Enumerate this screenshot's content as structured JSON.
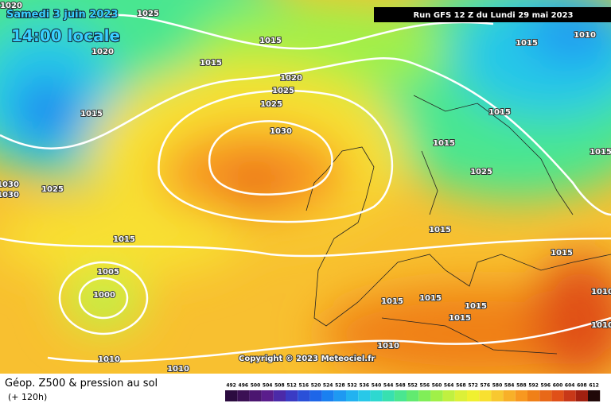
{
  "header": {
    "date": "Samedi 3 juin 2023",
    "time": "14:00 locale",
    "run": "Run GFS 12 Z du Lundi 29 mai 2023"
  },
  "pressure_labels": [
    "1020",
    "1025",
    "1015",
    "1015",
    "1020",
    "1015",
    "1010",
    "1020",
    "1025",
    "1025",
    "1030",
    "1015",
    "1015",
    "1015",
    "1015",
    "1025",
    "1030",
    "1030",
    "1025",
    "1015",
    "1015",
    "1015",
    "1005",
    "1000",
    "1015",
    "1015",
    "1015",
    "1015",
    "1010",
    "1010",
    "1010",
    "1010",
    "1010"
  ],
  "footer": {
    "title": "Géop. Z500 & pression au sol",
    "subtitle": "(+ 120h)",
    "copyright": "Copyright © 2023 Meteociel.fr"
  },
  "legend": {
    "values": [
      "492",
      "496",
      "500",
      "504",
      "508",
      "512",
      "516",
      "520",
      "524",
      "528",
      "532",
      "536",
      "540",
      "544",
      "548",
      "552",
      "556",
      "560",
      "564",
      "568",
      "572",
      "576",
      "580",
      "584",
      "588",
      "592",
      "596",
      "600",
      "604",
      "608",
      "612"
    ],
    "colors": [
      "#2b0b3f",
      "#3b1054",
      "#4b1670",
      "#5a1d8c",
      "#4b2aa8",
      "#3a3bc4",
      "#2a50d8",
      "#1e66e8",
      "#1a80f0",
      "#1e99f2",
      "#22b2f0",
      "#28c8e8",
      "#2ed8d0",
      "#38e0b0",
      "#4ae690",
      "#62ea70",
      "#80ee58",
      "#a0f048",
      "#c0f040",
      "#dcf038",
      "#f0f030",
      "#f8e030",
      "#f8c830",
      "#f8b028",
      "#f89820",
      "#f08018",
      "#e86818",
      "#e05018",
      "#c83818",
      "#a02010",
      "#200808"
    ]
  }
}
